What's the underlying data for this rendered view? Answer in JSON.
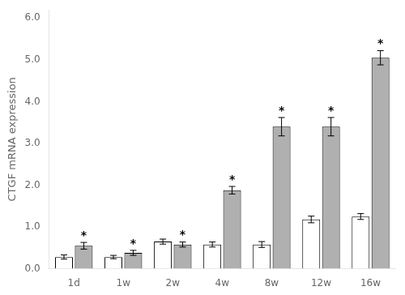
{
  "chart_data": {
    "type": "bar",
    "categories": [
      "1d",
      "1w",
      "2w",
      "4w",
      "8w",
      "12w",
      "16w"
    ],
    "series": [
      {
        "color": "#ffffff",
        "values": [
          0.28,
          0.28,
          0.65,
          0.58,
          0.58,
          1.18,
          1.25
        ],
        "errors": [
          0.05,
          0.04,
          0.06,
          0.06,
          0.07,
          0.08,
          0.07
        ]
      },
      {
        "color": "#b0b0b0",
        "values": [
          0.55,
          0.38,
          0.58,
          1.88,
          3.4,
          3.4,
          5.05
        ],
        "errors": [
          0.08,
          0.06,
          0.06,
          0.09,
          0.22,
          0.22,
          0.17
        ],
        "annotations": [
          "*",
          "*",
          "*",
          "*",
          "*",
          "*",
          "*"
        ]
      }
    ],
    "ylabel": "CTGF mRNA expression",
    "ylim": [
      0,
      6.2
    ],
    "yticks": [
      {
        "value": 0.0,
        "label": "0.0"
      },
      {
        "value": 1.0,
        "label": "1.0"
      },
      {
        "value": 2.0,
        "label": "2.0"
      },
      {
        "value": 3.0,
        "label": "3.0"
      },
      {
        "value": 4.0,
        "label": "4.0"
      },
      {
        "value": 5.0,
        "label": "5.0"
      },
      {
        "value": 6.0,
        "label": "6.0"
      }
    ],
    "grid": false
  }
}
